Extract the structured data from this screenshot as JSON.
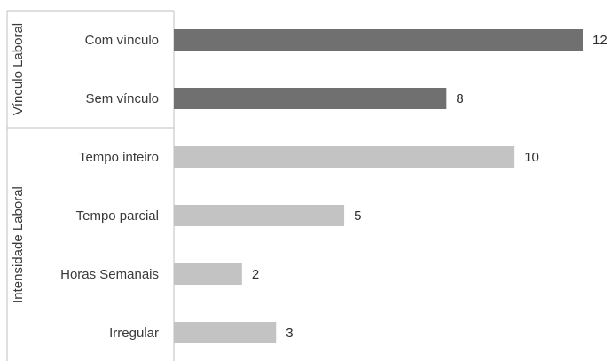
{
  "chart_data": {
    "type": "bar",
    "orientation": "horizontal",
    "groups": [
      {
        "name": "Vínculo Laboral",
        "color": "#707070",
        "categories": [
          "Com vínculo",
          "Sem vínculo"
        ],
        "values": [
          12,
          8
        ]
      },
      {
        "name": "Intensidade Laboral",
        "color": "#c3c3c3",
        "categories": [
          "Tempo inteiro",
          "Tempo  parcial",
          "Horas Semanais",
          "Irregular"
        ],
        "values": [
          10,
          5,
          2,
          3
        ]
      }
    ],
    "xlim": [
      0,
      12
    ],
    "grid": false,
    "data_labels": true,
    "title": "",
    "xlabel": "",
    "ylabel": ""
  }
}
